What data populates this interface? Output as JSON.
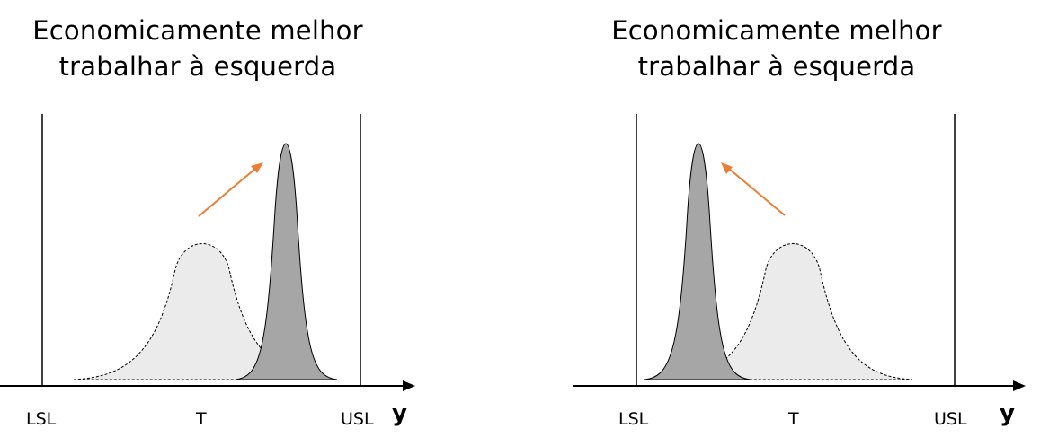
{
  "panels": [
    {
      "title_line1": "Economicamente melhor",
      "title_line2": "trabalhar à esquerda",
      "labels": {
        "lsl": "LSL",
        "target": "T",
        "usl": "USL",
        "variable": "y"
      },
      "arrow_direction": "right"
    },
    {
      "title_line1": "Economicamente melhor",
      "title_line2": "trabalhar à esquerda",
      "labels": {
        "lsl": "LSL",
        "target": "T",
        "usl": "USL",
        "variable": "y"
      },
      "arrow_direction": "left"
    }
  ],
  "colors": {
    "narrow_curve_fill": "#a6a6a6",
    "wide_curve_fill": "#ebebeb",
    "arrow": "#ed7d31",
    "line": "#000000"
  }
}
